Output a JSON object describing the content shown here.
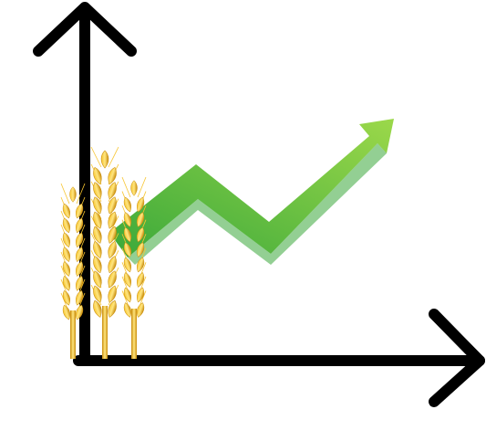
{
  "illustration": {
    "subject": "wheat-price-growth",
    "icons": [
      "y-axis-arrow-icon",
      "x-axis-arrow-icon",
      "trend-arrow-icon",
      "wheat-ears-icon"
    ],
    "colors": {
      "axis": "#000000",
      "trend_light": "#9bd84a",
      "trend_dark": "#3aa83a",
      "wheat_light": "#ffe680",
      "wheat_mid": "#f7c531",
      "wheat_dark": "#c98c0a",
      "background": "#ffffff"
    }
  }
}
